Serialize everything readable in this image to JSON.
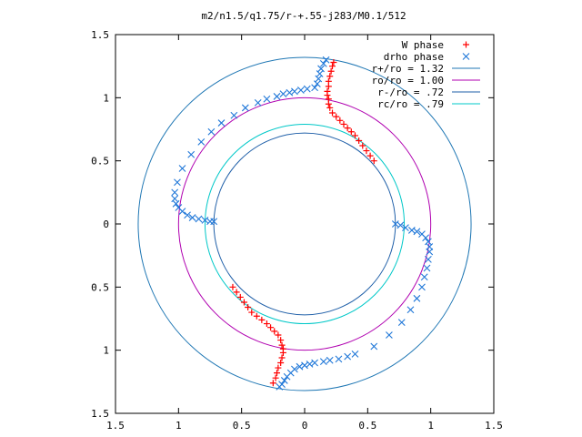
{
  "chart_data": {
    "type": "scatter",
    "title": "m2/n1.5/q1.75/r-+.55-j283/M0.1/512",
    "xlim": [
      -1.5,
      1.5
    ],
    "ylim": [
      -1.5,
      1.5
    ],
    "x_ticks": [
      {
        "value": -1.5,
        "label": "1.5"
      },
      {
        "value": -1.0,
        "label": "1"
      },
      {
        "value": -0.5,
        "label": "0.5"
      },
      {
        "value": 0.0,
        "label": "0"
      },
      {
        "value": 0.5,
        "label": "0.5"
      },
      {
        "value": 1.0,
        "label": "1"
      },
      {
        "value": 1.5,
        "label": "1.5"
      }
    ],
    "y_ticks": [
      {
        "value": 1.5,
        "label": "1.5"
      },
      {
        "value": 1.0,
        "label": "1"
      },
      {
        "value": 0.5,
        "label": "0.5"
      },
      {
        "value": 0.0,
        "label": "0"
      },
      {
        "value": -0.5,
        "label": "0.5"
      },
      {
        "value": -1.0,
        "label": "1"
      },
      {
        "value": -1.5,
        "label": "1.5"
      }
    ],
    "legend": {
      "placement": "top-right",
      "entries": [
        {
          "label": "W phase",
          "symbol": "plus",
          "color": "#ff0000"
        },
        {
          "label": "drho phase",
          "symbol": "cross",
          "color": "#1f77d8"
        },
        {
          "label": "r+/ro = 1.32",
          "symbol": "line",
          "color": "#1f77b4"
        },
        {
          "label": "ro/ro = 1.00",
          "symbol": "line",
          "color": "#b000b0"
        },
        {
          "label": "r-/ro = .72",
          "symbol": "line",
          "color": "#1f5fa8"
        },
        {
          "label": "rc/ro = .79",
          "symbol": "line",
          "color": "#00c8c8"
        }
      ]
    },
    "circles": [
      {
        "name": "r+/ro = 1.32",
        "r": 1.32,
        "color": "#1f77b4"
      },
      {
        "name": "ro/ro = 1.00",
        "r": 1.0,
        "color": "#b000b0"
      },
      {
        "name": "r-/ro = .72",
        "r": 0.72,
        "color": "#1f5fa8"
      },
      {
        "name": "rc/ro = .79",
        "r": 0.79,
        "color": "#00c8c8"
      }
    ],
    "series": [
      {
        "name": "W phase",
        "color": "#ff0000",
        "symbol": "plus",
        "points": [
          [
            0.55,
            0.5
          ],
          [
            0.52,
            0.54
          ],
          [
            0.49,
            0.58
          ],
          [
            0.46,
            0.62
          ],
          [
            0.43,
            0.66
          ],
          [
            0.4,
            0.7
          ],
          [
            0.37,
            0.73
          ],
          [
            0.34,
            0.76
          ],
          [
            0.31,
            0.79
          ],
          [
            0.28,
            0.82
          ],
          [
            0.25,
            0.85
          ],
          [
            0.22,
            0.88
          ],
          [
            0.2,
            0.92
          ],
          [
            0.19,
            0.95
          ],
          [
            0.19,
            0.99
          ],
          [
            0.18,
            1.02
          ],
          [
            0.18,
            1.05
          ],
          [
            0.19,
            1.09
          ],
          [
            0.19,
            1.13
          ],
          [
            0.2,
            1.17
          ],
          [
            0.21,
            1.21
          ],
          [
            0.22,
            1.25
          ],
          [
            0.23,
            1.28
          ],
          [
            -0.57,
            -0.5
          ],
          [
            -0.54,
            -0.54
          ],
          [
            -0.51,
            -0.58
          ],
          [
            -0.48,
            -0.62
          ],
          [
            -0.45,
            -0.66
          ],
          [
            -0.42,
            -0.7
          ],
          [
            -0.38,
            -0.73
          ],
          [
            -0.34,
            -0.76
          ],
          [
            -0.3,
            -0.79
          ],
          [
            -0.27,
            -0.82
          ],
          [
            -0.24,
            -0.85
          ],
          [
            -0.21,
            -0.88
          ],
          [
            -0.19,
            -0.92
          ],
          [
            -0.18,
            -0.96
          ],
          [
            -0.17,
            -0.99
          ],
          [
            -0.17,
            -1.02
          ],
          [
            -0.18,
            -1.06
          ],
          [
            -0.19,
            -1.1
          ],
          [
            -0.21,
            -1.14
          ],
          [
            -0.22,
            -1.18
          ],
          [
            -0.23,
            -1.22
          ],
          [
            -0.25,
            -1.26
          ]
        ]
      },
      {
        "name": "drho phase",
        "color": "#1f77d8",
        "symbol": "cross",
        "points": [
          [
            0.17,
            1.3
          ],
          [
            0.15,
            1.27
          ],
          [
            0.13,
            1.23
          ],
          [
            0.12,
            1.19
          ],
          [
            0.11,
            1.15
          ],
          [
            0.1,
            1.11
          ],
          [
            0.08,
            1.08
          ],
          [
            0.02,
            1.07
          ],
          [
            -0.03,
            1.06
          ],
          [
            -0.08,
            1.05
          ],
          [
            -0.12,
            1.04
          ],
          [
            -0.17,
            1.03
          ],
          [
            -0.22,
            1.01
          ],
          [
            -0.3,
            0.99
          ],
          [
            -0.37,
            0.96
          ],
          [
            -0.47,
            0.92
          ],
          [
            -0.56,
            0.86
          ],
          [
            -0.66,
            0.8
          ],
          [
            -0.74,
            0.73
          ],
          [
            -0.82,
            0.65
          ],
          [
            -0.9,
            0.55
          ],
          [
            -0.97,
            0.44
          ],
          [
            -1.01,
            0.33
          ],
          [
            -1.03,
            0.25
          ],
          [
            -1.03,
            0.2
          ],
          [
            -1.02,
            0.16
          ],
          [
            -1.0,
            0.13
          ],
          [
            -0.97,
            0.1
          ],
          [
            -0.93,
            0.07
          ],
          [
            -0.89,
            0.05
          ],
          [
            -0.84,
            0.04
          ],
          [
            -0.79,
            0.03
          ],
          [
            -0.75,
            0.02
          ],
          [
            -0.72,
            0.02
          ],
          [
            0.72,
            0.0
          ],
          [
            0.76,
            -0.01
          ],
          [
            0.8,
            -0.03
          ],
          [
            0.85,
            -0.05
          ],
          [
            0.89,
            -0.06
          ],
          [
            0.93,
            -0.08
          ],
          [
            0.96,
            -0.11
          ],
          [
            0.98,
            -0.14
          ],
          [
            0.99,
            -0.18
          ],
          [
            0.99,
            -0.22
          ],
          [
            0.98,
            -0.28
          ],
          [
            0.97,
            -0.35
          ],
          [
            0.95,
            -0.42
          ],
          [
            0.93,
            -0.5
          ],
          [
            0.89,
            -0.59
          ],
          [
            0.84,
            -0.68
          ],
          [
            0.77,
            -0.78
          ],
          [
            0.67,
            -0.88
          ],
          [
            0.55,
            -0.97
          ],
          [
            0.4,
            -1.03
          ],
          [
            0.34,
            -1.05
          ],
          [
            0.27,
            -1.07
          ],
          [
            0.2,
            -1.08
          ],
          [
            0.15,
            -1.09
          ],
          [
            0.08,
            -1.1
          ],
          [
            0.04,
            -1.11
          ],
          [
            0.0,
            -1.12
          ],
          [
            -0.04,
            -1.13
          ],
          [
            -0.08,
            -1.15
          ],
          [
            -0.11,
            -1.18
          ],
          [
            -0.14,
            -1.21
          ],
          [
            -0.16,
            -1.24
          ],
          [
            -0.18,
            -1.27
          ],
          [
            -0.2,
            -1.29
          ]
        ]
      }
    ]
  }
}
